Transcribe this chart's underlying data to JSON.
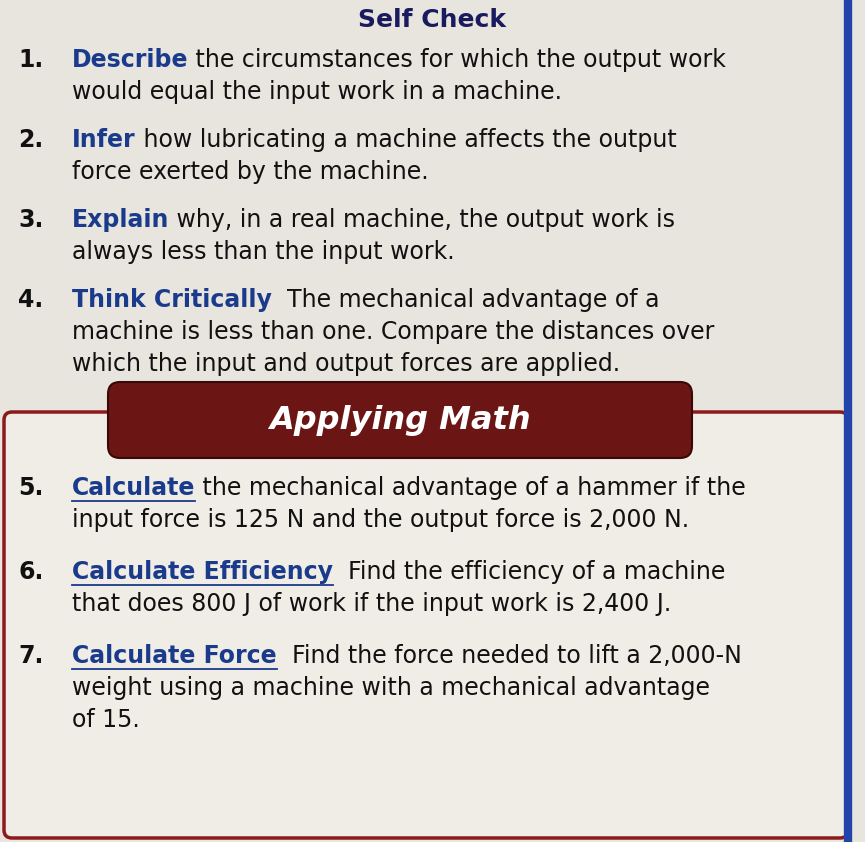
{
  "background_color": "#e8e4de",
  "header_text": "Self Check",
  "header_color": "#1a1a5e",
  "items": [
    {
      "number": "1.",
      "bold_word": "Describe",
      "bold_color": "#1a3a8c",
      "rest_text": " the circumstances for which the output work\nwould equal the input work in a machine."
    },
    {
      "number": "2.",
      "bold_word": "Infer",
      "bold_color": "#1a3a8c",
      "rest_text": " how lubricating a machine affects the output\nforce exerted by the machine."
    },
    {
      "number": "3.",
      "bold_word": "Explain",
      "bold_color": "#1a3a8c",
      "rest_text": " why, in a real machine, the output work is\nalways less than the input work."
    },
    {
      "number": "4.",
      "bold_word": "Think Critically",
      "bold_color": "#1a3a8c",
      "rest_text": "  The mechanical advantage of a\nmachine is less than one. Compare the distances over\nwhich the input and output forces are applied."
    }
  ],
  "applying_math_label": "Applying Math",
  "applying_math_bg_top": "#a03030",
  "applying_math_bg_bot": "#6b1515",
  "applying_math_text_color": "#ffffff",
  "box_border_color": "#8b1a1a",
  "box_bg_color": "#f0ece6",
  "math_items": [
    {
      "number": "5.",
      "bold_word": "Calculate",
      "bold_color": "#1a3a8c",
      "underline": true,
      "rest_text": " the mechanical advantage of a hammer if the\ninput force is 125 N and the output force is 2,000 N."
    },
    {
      "number": "6.",
      "bold_word": "Calculate Efficiency",
      "bold_color": "#1a3a8c",
      "underline": true,
      "rest_text": "  Find the efficiency of a machine\nthat does 800 J of work if the input work is 2,400 J."
    },
    {
      "number": "7.",
      "bold_word": "Calculate Force",
      "bold_color": "#1a3a8c",
      "underline": true,
      "rest_text": "  Find the force needed to lift a 2,000-N\nweight using a machine with a mechanical advantage\nof 15."
    }
  ],
  "text_color": "#111111",
  "font_size": 17,
  "bold_font_size": 17,
  "right_bar_color": "#2244aa",
  "right_bar_width": 6
}
